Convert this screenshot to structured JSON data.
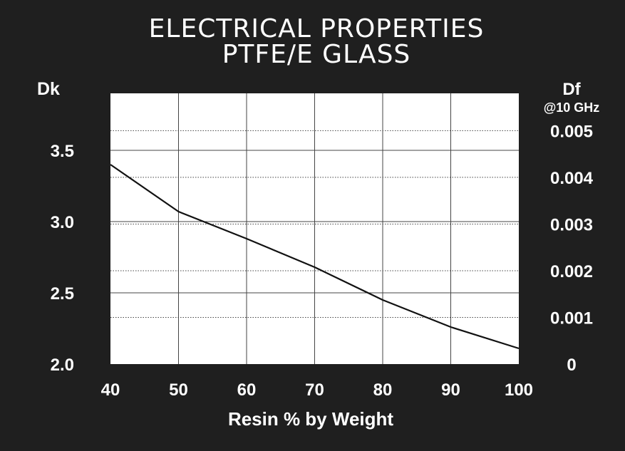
{
  "chart_data": {
    "type": "line",
    "title": [
      "ELECTRICAL PROPERTIES",
      "PTFE/E GLASS"
    ],
    "xlabel": "Resin % by Weight",
    "ylabel_left": "Dk",
    "ylabel_right": "Df",
    "ylabel_right_sub": "@10 GHz",
    "x_ticks": [
      40,
      50,
      60,
      70,
      80,
      90,
      100
    ],
    "y_left_ticks": [
      "2.0",
      "2.5",
      "3.0",
      "3.5"
    ],
    "y_right_ticks": [
      "0",
      "0.001",
      "0.002",
      "0.003",
      "0.004",
      "0.005"
    ],
    "xlim": [
      40,
      100
    ],
    "ylim_left": [
      2.0,
      3.9
    ],
    "ylim_right": [
      0,
      0.0058
    ],
    "grid": true,
    "series": [
      {
        "axis": "left",
        "x": [
          40,
          50,
          60,
          70,
          80,
          90,
          100
        ],
        "values": [
          3.4,
          3.07,
          2.88,
          2.68,
          2.45,
          2.26,
          2.11
        ]
      }
    ],
    "colors": {
      "background": "#1f1f1f",
      "plot_area": "#ffffff",
      "line": "#111111",
      "grid": "#444444",
      "text": "#ffffff"
    }
  }
}
